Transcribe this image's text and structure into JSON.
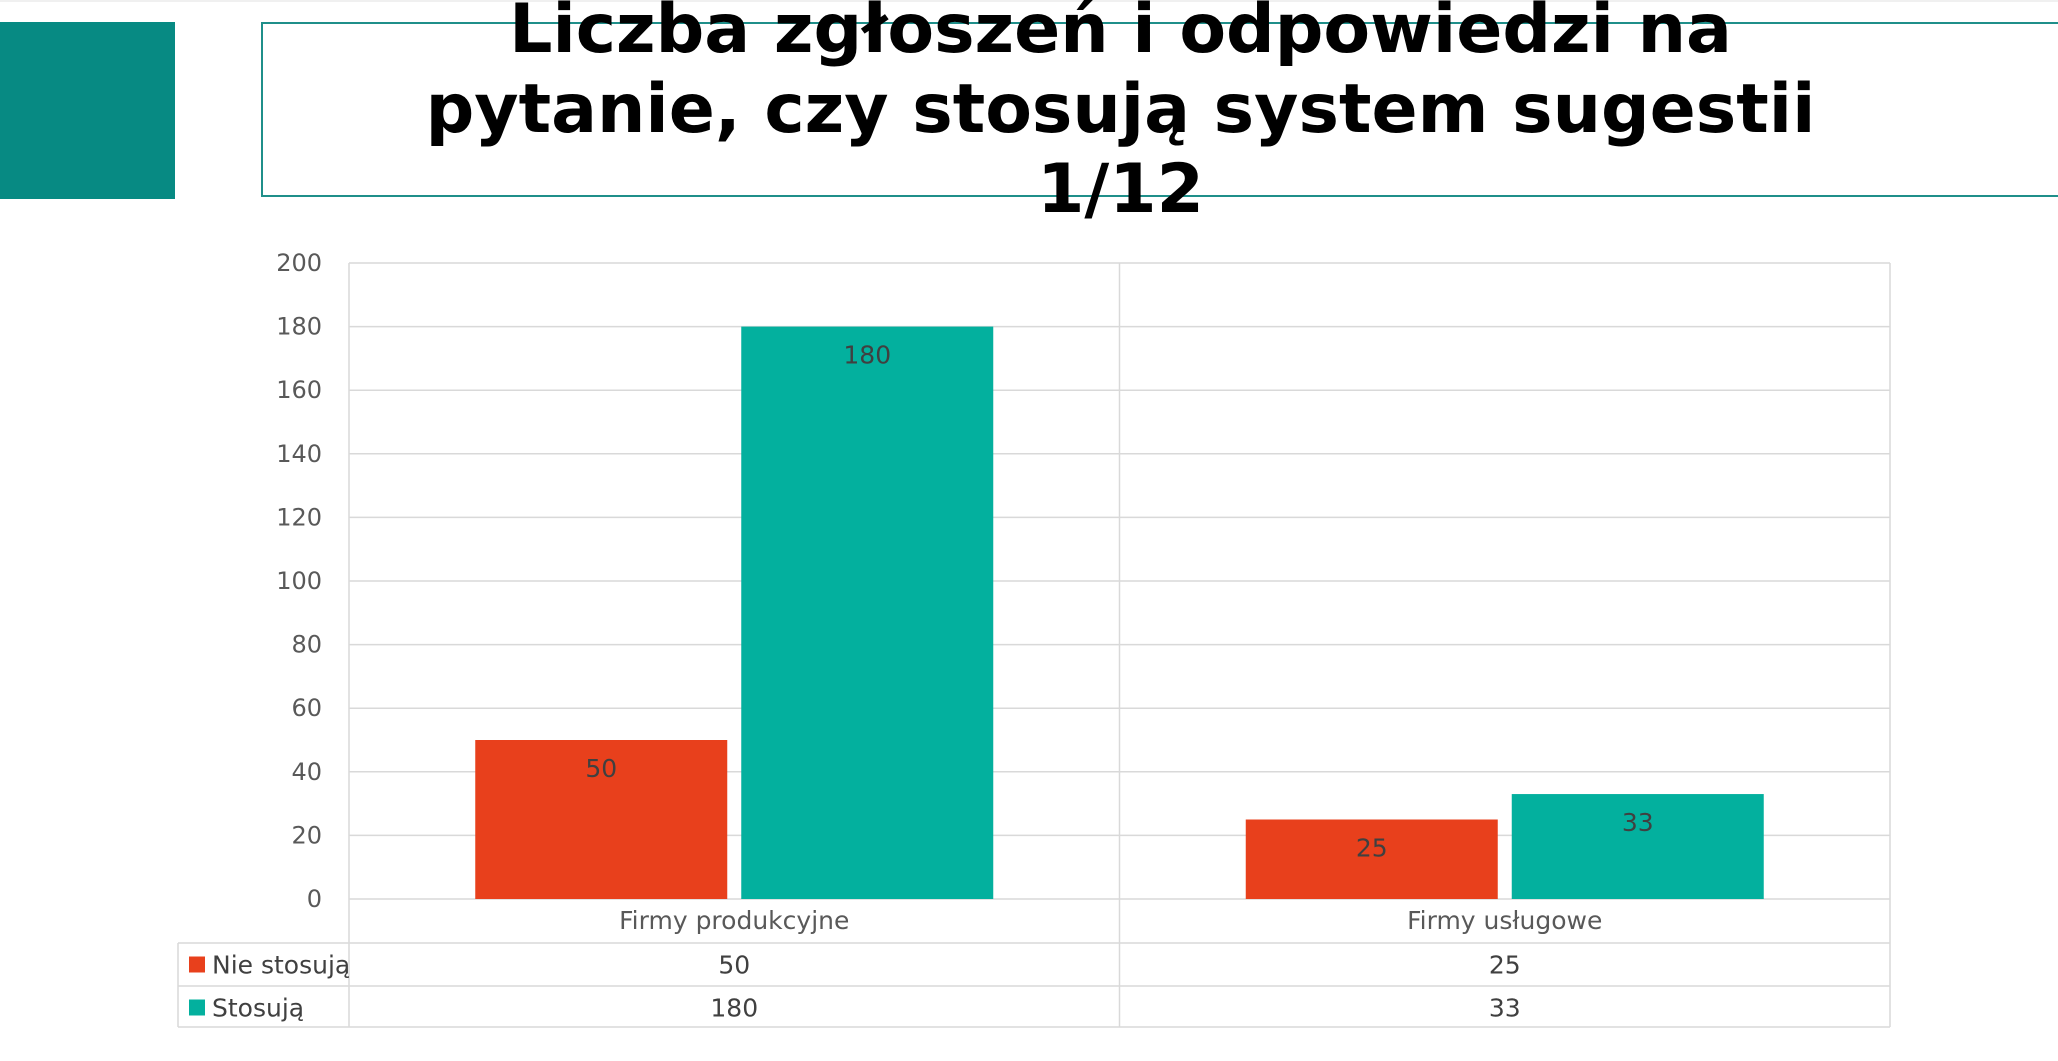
{
  "title": "Liczba zgłoszeń i odpowiedzi na pytanie, czy stosują system sugestii 1/12",
  "colors": {
    "accent": "#078a83",
    "series_nie": "#e8401c",
    "series_tak": "#03b09e",
    "grid": "#d9d9d9",
    "text": "#595959"
  },
  "chart_data": {
    "type": "bar",
    "categories": [
      "Firmy produkcyjne",
      "Firmy usługowe"
    ],
    "series": [
      {
        "name": "Nie stosują",
        "values": [
          50,
          25
        ],
        "color": "#e8401c"
      },
      {
        "name": "Stosują",
        "values": [
          180,
          33
        ],
        "color": "#03b09e"
      }
    ],
    "ylim": [
      0,
      200
    ],
    "yticks": [
      0,
      20,
      40,
      60,
      80,
      100,
      120,
      140,
      160,
      180,
      200
    ],
    "grid": true,
    "legend": "data-table-below",
    "data_labels": true
  }
}
